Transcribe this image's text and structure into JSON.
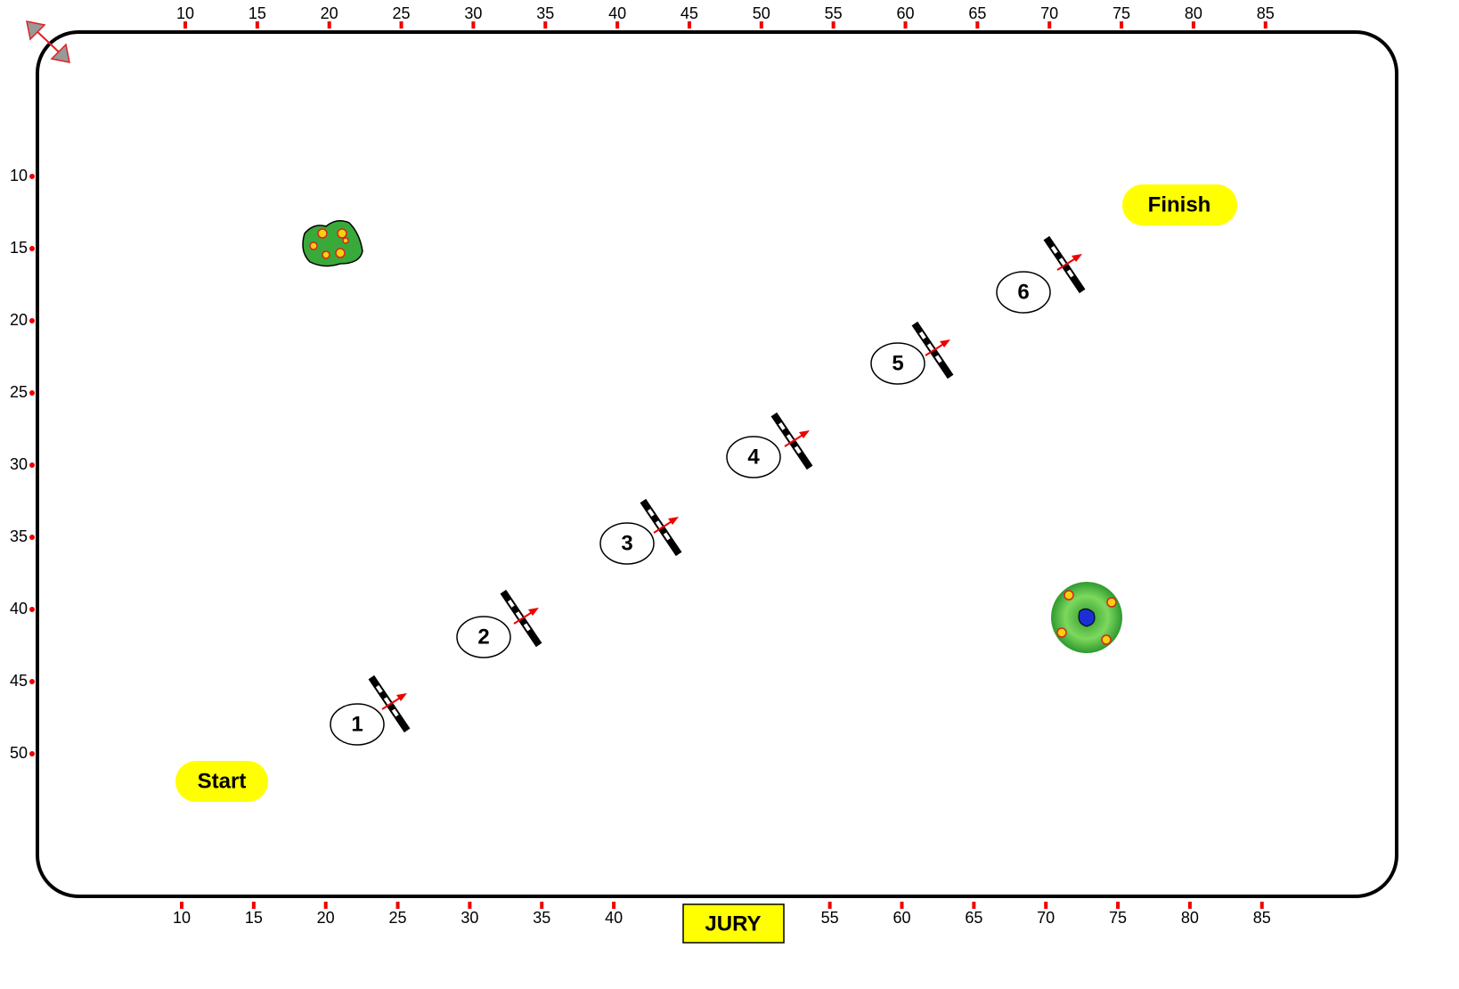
{
  "rulers": {
    "top": [
      10,
      15,
      20,
      25,
      30,
      35,
      40,
      45,
      50,
      55,
      60,
      65,
      70,
      75,
      80,
      85
    ],
    "left": [
      10,
      15,
      20,
      25,
      30,
      35,
      40,
      45,
      50
    ],
    "bottom": [
      10,
      15,
      20,
      25,
      30,
      35,
      40,
      55,
      60,
      65,
      70,
      75,
      80,
      85
    ]
  },
  "jumps": [
    "1",
    "2",
    "3",
    "4",
    "5",
    "6"
  ],
  "start": "Start",
  "finish": "Finish",
  "jury": "JURY"
}
